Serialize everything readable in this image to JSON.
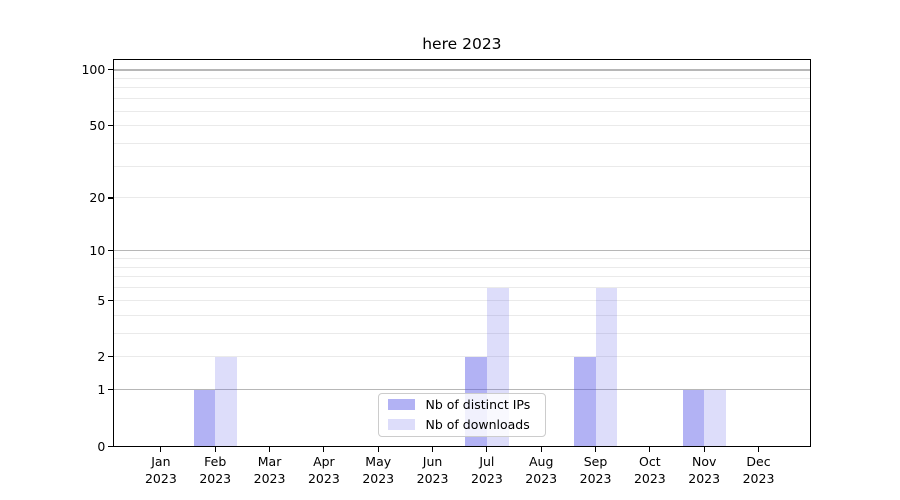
{
  "chart_data": {
    "type": "bar",
    "title": "here 2023",
    "x_tick_months": [
      "Jan",
      "Feb",
      "Mar",
      "Apr",
      "May",
      "Jun",
      "Jul",
      "Aug",
      "Sep",
      "Oct",
      "Nov",
      "Dec"
    ],
    "x_tick_year": "2023",
    "series": [
      {
        "name": "Nb of distinct IPs",
        "color": "rgba(85,85,230,0.45)",
        "values": [
          0,
          1,
          0,
          0,
          0,
          0,
          2,
          0,
          2,
          0,
          1,
          0
        ]
      },
      {
        "name": "Nb of downloads",
        "color": "rgba(85,85,230,0.20)",
        "values": [
          0,
          2,
          0,
          0,
          0,
          0,
          6,
          0,
          6,
          0,
          1,
          0
        ]
      }
    ],
    "yscale": "log1p",
    "ytick_labels": [
      "0",
      "1",
      "2",
      "5",
      "10",
      "20",
      "50",
      "100"
    ],
    "ytick_values": [
      0,
      1,
      2,
      5,
      10,
      20,
      50,
      100
    ],
    "minor_grid_values": [
      2,
      3,
      4,
      5,
      6,
      7,
      8,
      9,
      20,
      30,
      40,
      50,
      60,
      70,
      80,
      90
    ],
    "major_grid_values": [
      1,
      10,
      100
    ],
    "ylim": [
      0,
      113
    ],
    "grid": "both",
    "legend": {
      "position": "lower-center-inside"
    },
    "colors": {
      "major_grid": "#b7b7b7",
      "minor_grid": "#eaeaea",
      "axis": "#000000",
      "background": "#ffffff"
    }
  }
}
